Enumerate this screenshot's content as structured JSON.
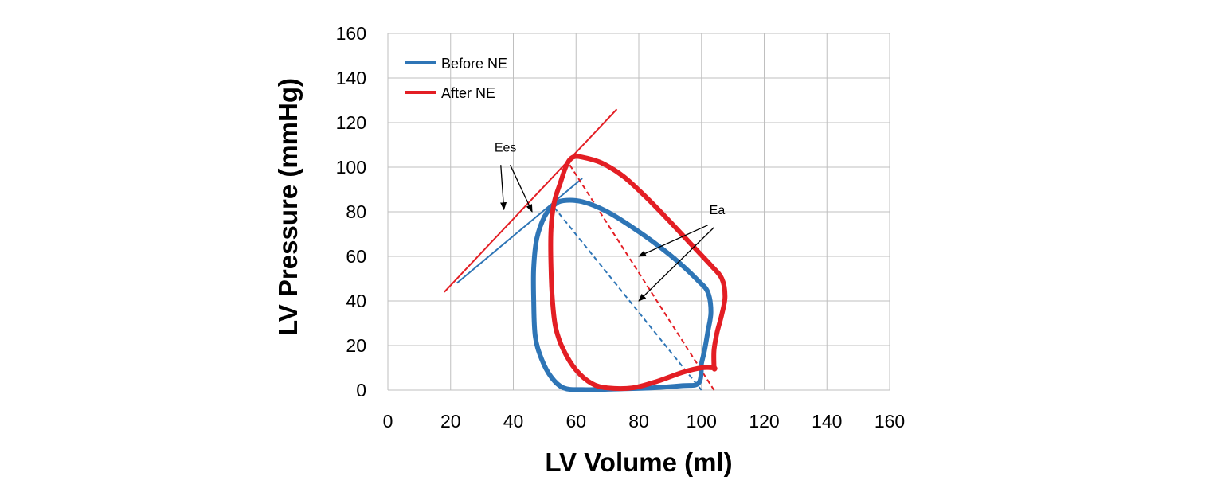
{
  "chart_data": {
    "type": "line",
    "xlabel": "LV Volume (ml)",
    "ylabel": "LV Pressure (mmHg)",
    "xlim": [
      0,
      160
    ],
    "ylim": [
      0,
      160
    ],
    "x_ticks": [
      0,
      20,
      40,
      60,
      80,
      100,
      120,
      140,
      160
    ],
    "y_ticks": [
      0,
      20,
      40,
      60,
      80,
      100,
      120,
      140,
      160
    ],
    "grid": true,
    "legend_position": "top-left",
    "series": [
      {
        "name": "Before NE",
        "color": "#2E75B6",
        "closed": true,
        "points": [
          [
            100,
            10
          ],
          [
            99,
            3
          ],
          [
            94,
            2
          ],
          [
            84,
            1
          ],
          [
            72,
            0.5
          ],
          [
            62,
            0.2
          ],
          [
            56,
            1
          ],
          [
            52,
            6
          ],
          [
            49,
            14
          ],
          [
            47,
            24
          ],
          [
            46.5,
            40
          ],
          [
            46.5,
            55
          ],
          [
            47.5,
            68
          ],
          [
            50,
            78
          ],
          [
            53,
            83
          ],
          [
            56,
            85
          ],
          [
            62,
            84.5
          ],
          [
            70,
            80
          ],
          [
            78,
            73
          ],
          [
            86,
            65
          ],
          [
            93,
            57
          ],
          [
            99,
            49
          ],
          [
            102,
            44
          ],
          [
            103,
            35
          ],
          [
            102,
            26
          ],
          [
            101,
            18
          ],
          [
            100,
            12
          ]
        ]
      },
      {
        "name": "After NE",
        "color": "#E31E24",
        "closed": true,
        "points": [
          [
            104,
            10
          ],
          [
            104,
            18
          ],
          [
            105,
            26
          ],
          [
            106.5,
            34
          ],
          [
            107.5,
            42
          ],
          [
            106.5,
            50
          ],
          [
            103,
            56
          ],
          [
            97,
            65
          ],
          [
            89,
            77
          ],
          [
            82,
            87
          ],
          [
            75,
            96
          ],
          [
            68,
            102
          ],
          [
            62,
            104.5
          ],
          [
            59,
            104.5
          ],
          [
            57,
            101
          ],
          [
            55,
            93
          ],
          [
            53,
            84
          ],
          [
            52,
            72
          ],
          [
            52,
            55
          ],
          [
            52.5,
            40
          ],
          [
            53.5,
            28
          ],
          [
            56,
            18
          ],
          [
            60,
            9
          ],
          [
            65,
            3
          ],
          [
            70,
            1
          ],
          [
            78,
            1
          ],
          [
            86,
            4
          ],
          [
            94,
            8
          ],
          [
            100,
            10
          ],
          [
            104,
            10
          ]
        ]
      }
    ],
    "reference_lines": [
      {
        "kind": "solid",
        "color": "#E31E24",
        "points": [
          [
            18,
            44
          ],
          [
            73,
            126
          ]
        ]
      },
      {
        "kind": "solid",
        "color": "#2E75B6",
        "points": [
          [
            22,
            48
          ],
          [
            62,
            95
          ]
        ]
      },
      {
        "kind": "dashed",
        "color": "#E31E24",
        "points": [
          [
            58,
            101
          ],
          [
            104,
            0
          ]
        ]
      },
      {
        "kind": "dashed",
        "color": "#2E75B6",
        "points": [
          [
            53,
            82
          ],
          [
            100,
            0
          ]
        ]
      }
    ],
    "annotations": [
      {
        "text": "Ees",
        "text_at": [
          37.5,
          107
        ],
        "arrows": [
          {
            "from": [
              36,
              101
            ],
            "to": [
              37,
              81
            ]
          },
          {
            "from": [
              39,
              101
            ],
            "to": [
              46,
              80
            ]
          }
        ]
      },
      {
        "text": "Ea",
        "text_at": [
          105,
          79
        ],
        "arrows": [
          {
            "from": [
              102,
              74
            ],
            "to": [
              80,
              60
            ]
          },
          {
            "from": [
              104,
              73
            ],
            "to": [
              80,
              40
            ]
          }
        ]
      }
    ]
  }
}
